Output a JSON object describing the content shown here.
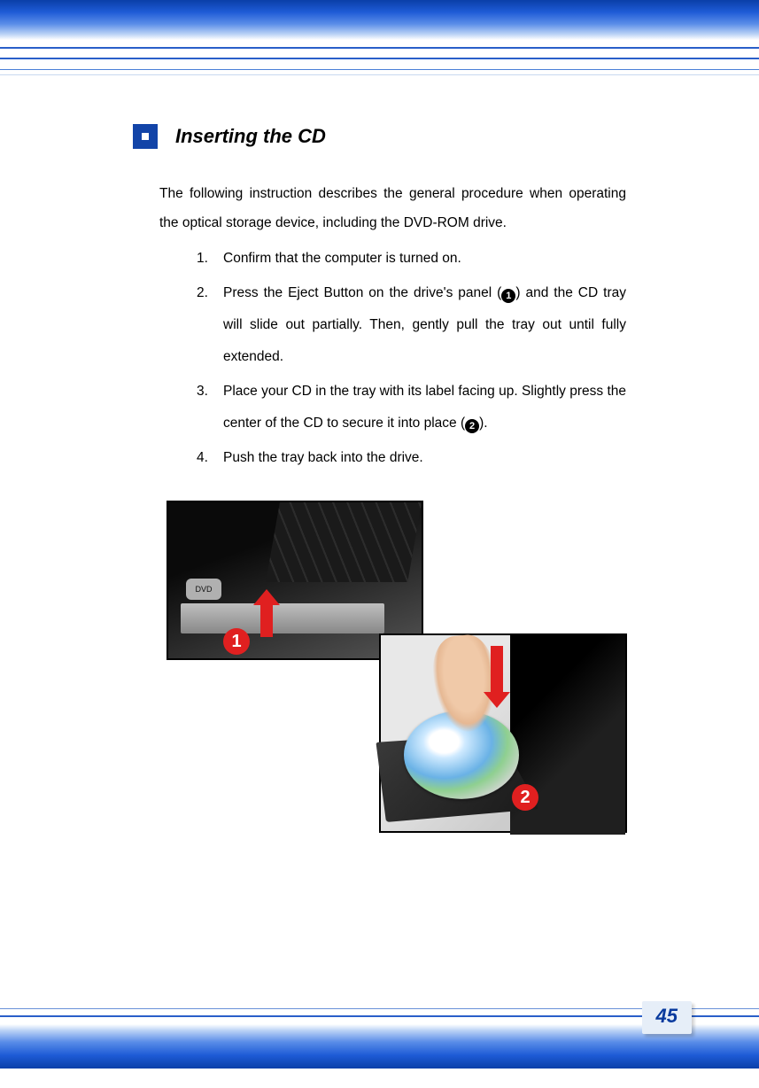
{
  "section": {
    "title": "Inserting the CD",
    "intro": "The following instruction describes the general procedure when operating the optical storage device, including the DVD-ROM drive."
  },
  "steps": {
    "s1": "Confirm that the computer is turned on.",
    "s2a": "Press the Eject Button on the drive's panel (",
    "s2b": ") and the CD tray will slide out partially.  Then, gently pull the tray out until fully extended.",
    "s3a": "Place your CD in the tray with its label facing up.  Slightly press the center of the CD to secure it into place (",
    "s3b": ").",
    "s4": "Push the tray back into the drive."
  },
  "callouts": {
    "one_inline": "1",
    "two_inline": "2",
    "one_fig": "1",
    "two_fig": "2"
  },
  "fig1_dvdlogo": "DVD",
  "pageNumber": "45",
  "colors": {
    "brand_blue": "#1244a8",
    "callout_red": "#e02020",
    "page_bg": "#e6eef8"
  }
}
